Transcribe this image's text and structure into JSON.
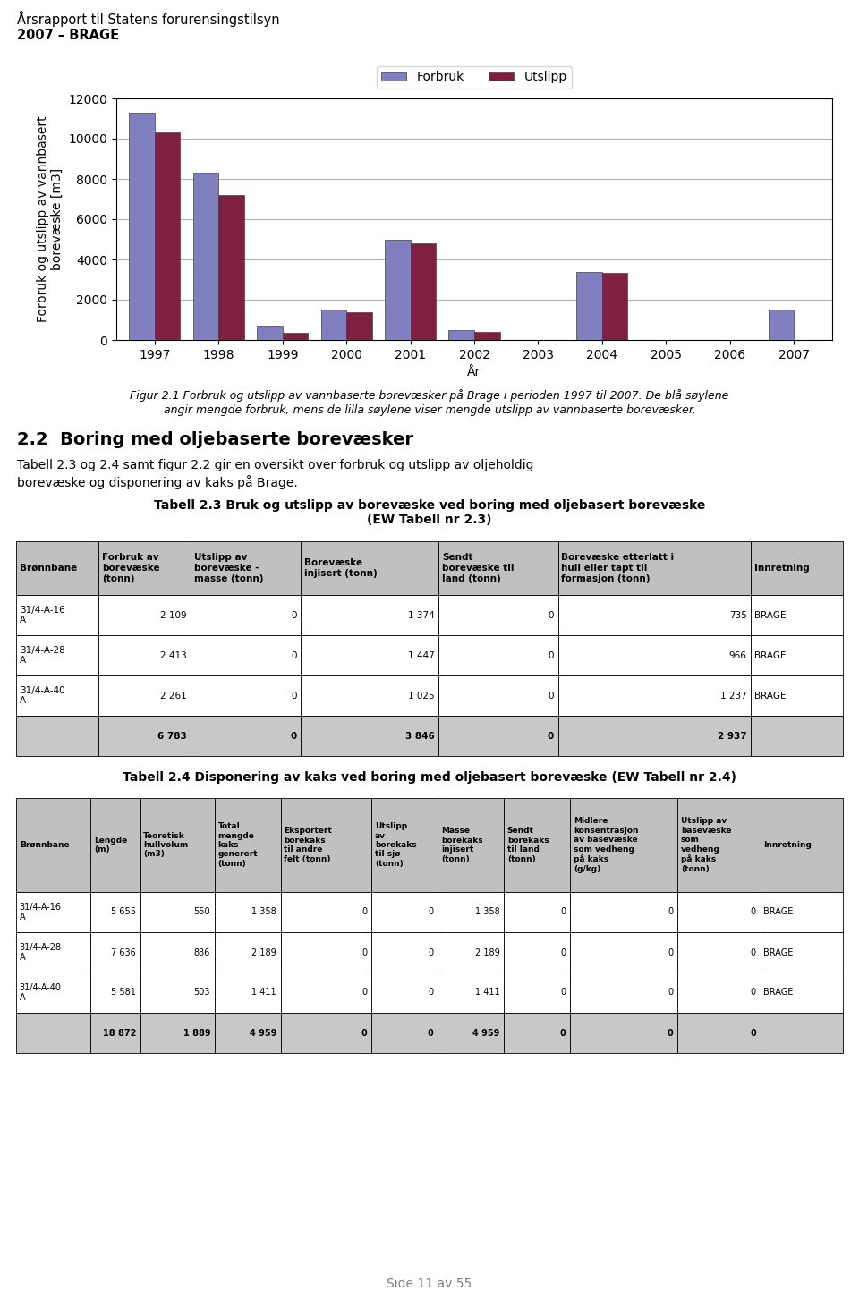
{
  "chart_data": [
    {
      "type": "bar",
      "categories": [
        "1997",
        "1998",
        "1999",
        "2000",
        "2001",
        "2002",
        "2003",
        "2004",
        "2005",
        "2006",
        "2007"
      ],
      "series": [
        {
          "name": "Forbruk",
          "color": "#8080c0",
          "values": [
            11300,
            8300,
            700,
            1500,
            5000,
            500,
            0,
            3400,
            0,
            0,
            1500
          ]
        },
        {
          "name": "Utslipp",
          "color": "#802040",
          "values": [
            10300,
            7200,
            350,
            1400,
            4800,
            400,
            0,
            3350,
            0,
            0,
            0
          ]
        }
      ],
      "ylabel": "Forbruk og utslipp av vannbasert\nborevæske [m3]",
      "xlabel": "År",
      "ylim": [
        0,
        12000
      ],
      "yticks": [
        0,
        2000,
        4000,
        6000,
        8000,
        10000,
        12000
      ],
      "grid": true,
      "legend": "upper center",
      "annotations": [
        "Årsrapport til Statens forurensingstilsyn",
        "2007 – BRAGE",
        "Figur 2.1 Forbruk og utslipp av vannbaserte borevæsker på Brage i perioden 1997 til 2007. De blå søylene",
        "angir mengde forbruk, mens de lilla søylene viser mengde utslipp av vannbaserte borevæsker.",
        "2.2  Boring med oljebaserte borevæsker",
        "Tabell 2.3 og 2.4 samt figur 2.2 gir en oversikt over forbruk og utslipp av oljeholdig",
        "borevæske og disponering av kaks på Brage.",
        "Side 11 av 55"
      ]
    },
    {
      "type": "table",
      "title": "Tabell 2.3 Bruk og utslipp av borevæske ved boring med oljebasert borevæske\n(EW Tabell nr 2.3)",
      "columns": [
        "Brønnbane",
        "Forbruk av\nborevæske\n(tonn)",
        "Utslipp av\nborevæske -\nmasse (tonn)",
        "Borevæske\ninjisert (tonn)",
        "Sendt\nborevæske til\nland (tonn)",
        "Borevæske etterlatt i\nhull eller tapt til\nformasjon (tonn)",
        "Innretning"
      ],
      "rows": [
        [
          "31/4-A-16\nA",
          "2 109",
          "0",
          "1 374",
          "0",
          "735",
          "BRAGE"
        ],
        [
          "31/4-A-28\nA",
          "2 413",
          "0",
          "1 447",
          "0",
          "966",
          "BRAGE"
        ],
        [
          "31/4-A-40\nA",
          "2 261",
          "0",
          "1 025",
          "0",
          "1 237",
          "BRAGE"
        ],
        [
          null,
          "6 783",
          "0",
          "3 846",
          "0",
          "2 937",
          null
        ]
      ]
    },
    {
      "type": "table",
      "title": "Tabell 2.4 Disponering av kaks ved boring med oljebasert borevæske (EW Tabell nr 2.4)",
      "columns": [
        "Brønnbane",
        "Lengde\n(m)",
        "Teoretisk\nhullvolum\n(m3)",
        "Total\nmengde\nkaks\ngenerert\n(tonn)",
        "Eksportert\nborekaks\ntil andre\nfelt (tonn)",
        "Utslipp\nav\nborekaks\ntil sjø\n(tonn)",
        "Masse\nborekaks\ninjisert\n(tonn)",
        "Sendt\nborekaks\ntil land\n(tonn)",
        "Midlere\nkonsentrasjon\nav basevæske\nsom vedheng\npå kaks\n(g/kg)",
        "Utslipp av\nbasevæske\nsom\nvedheng\npå kaks\n(tonn)",
        "Innretning"
      ],
      "rows": [
        [
          "31/4-A-16\nA",
          "5 655",
          "550",
          "1 358",
          "0",
          "0",
          "1 358",
          "0",
          "0",
          "0",
          "BRAGE"
        ],
        [
          "31/4-A-28\nA",
          "7 636",
          "836",
          "2 189",
          "0",
          "0",
          "2 189",
          "0",
          "0",
          "0",
          "BRAGE"
        ],
        [
          "31/4-A-40\nA",
          "5 581",
          "503",
          "1 411",
          "0",
          "0",
          "1 411",
          "0",
          "0",
          "0",
          "BRAGE"
        ],
        [
          null,
          "18 872",
          "1 889",
          "4 959",
          "0",
          "0",
          "4 959",
          "0",
          "0",
          "0",
          null
        ]
      ]
    }
  ]
}
